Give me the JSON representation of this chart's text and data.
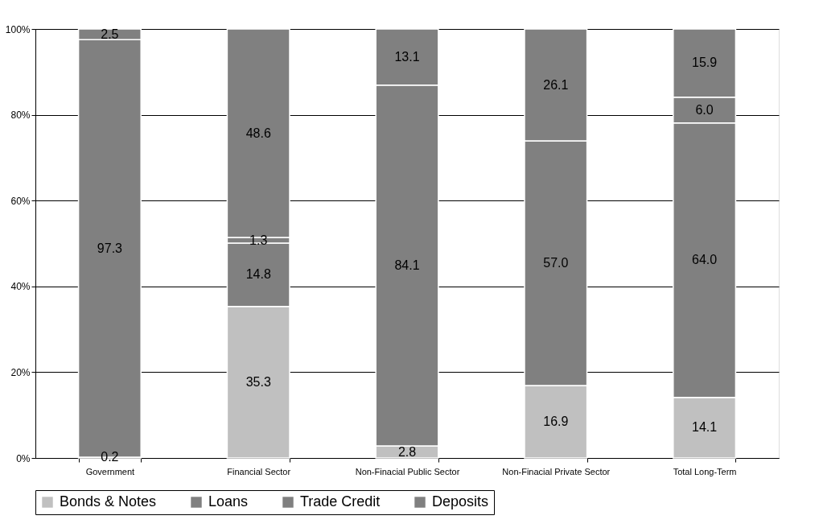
{
  "chart_data": {
    "type": "bar",
    "stacked": true,
    "categories": [
      "Government",
      "Financial Sector",
      "Non-Finacial Public Sector",
      "Non-Finacial Private Sector",
      "Total Long-Term"
    ],
    "series": [
      {
        "name": "Bonds & Notes",
        "color": "#c0c0c0",
        "values": [
          0.2,
          35.3,
          2.8,
          16.9,
          14.1
        ],
        "value_labels": [
          "0.2",
          "35.3",
          "2.8",
          "16.9",
          "14.1"
        ]
      },
      {
        "name": "Loans",
        "color": "#808080",
        "values": [
          97.3,
          14.8,
          84.1,
          57.0,
          64.0
        ],
        "value_labels": [
          "97.3",
          "14.8",
          "84.1",
          "57.0",
          "64.0"
        ]
      },
      {
        "name": "Trade Credit",
        "color": "#808080",
        "values": [
          null,
          1.3,
          null,
          null,
          6.0
        ],
        "value_labels": [
          null,
          "1.3",
          null,
          null,
          "6.0"
        ]
      },
      {
        "name": "Deposits",
        "color": "#808080",
        "values": [
          2.5,
          48.6,
          13.1,
          26.1,
          15.9
        ],
        "value_labels": [
          "2.5",
          "48.6",
          "13.1",
          "26.1",
          "15.9"
        ]
      }
    ],
    "ylim": [
      0,
      100
    ],
    "yticks": [
      {
        "value": 0,
        "label": "0%"
      },
      {
        "value": 20,
        "label": "20%"
      },
      {
        "value": 40,
        "label": "40%"
      },
      {
        "value": 60,
        "label": "60%"
      },
      {
        "value": 80,
        "label": "80%"
      },
      {
        "value": 100,
        "label": "100%"
      }
    ],
    "grid": "y",
    "legend": "bottom"
  }
}
